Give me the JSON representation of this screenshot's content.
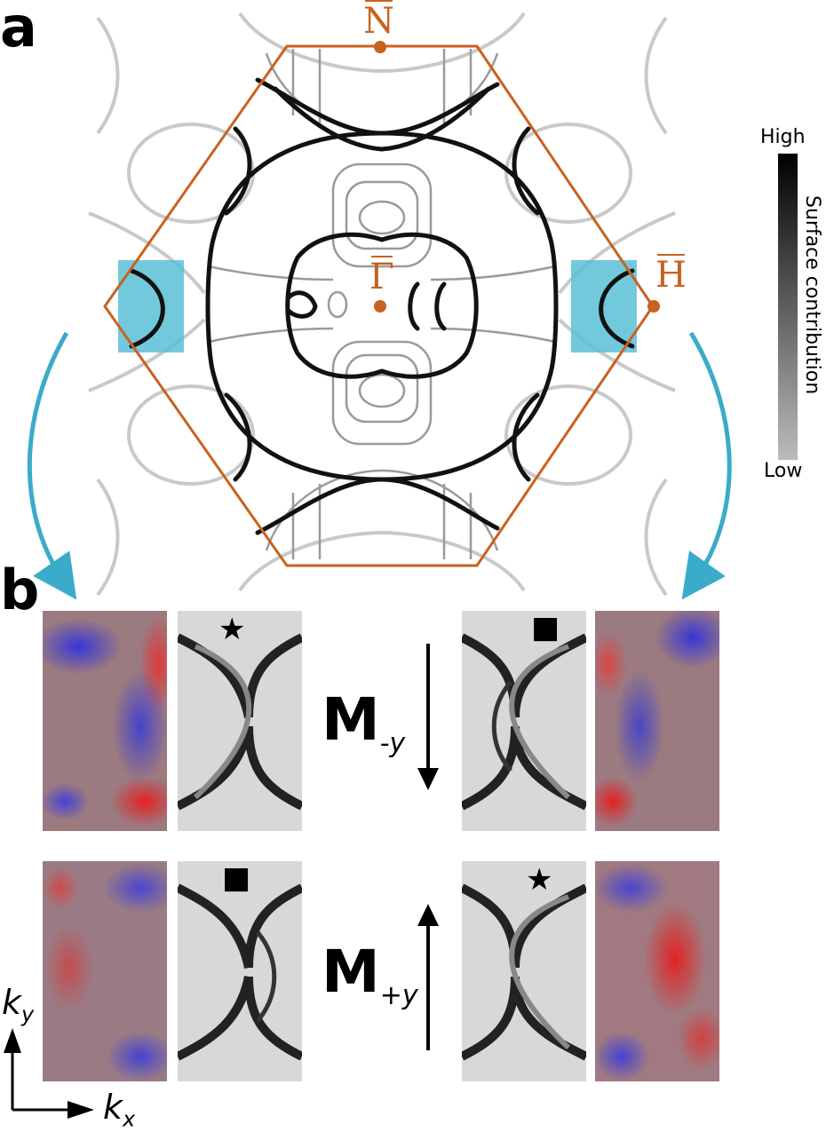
{
  "panel_a": {
    "letter": "a",
    "points": {
      "N": "N",
      "Gamma": "Γ",
      "H": "H"
    },
    "colorbar": {
      "high": "High",
      "low": "Low",
      "title": "Surface contribution"
    },
    "colors": {
      "bz_edge": "#c8621e",
      "highlight": "#5bbfd6",
      "arrow": "#3aabc9"
    }
  },
  "panel_b": {
    "letter": "b",
    "rows": [
      {
        "label_main": "M",
        "label_sub": "-y",
        "arrow_direction": "down",
        "left_marker": "★",
        "right_marker": "■"
      },
      {
        "label_main": "M",
        "label_sub": "+y",
        "arrow_direction": "up",
        "left_marker": "■",
        "right_marker": "★"
      }
    ],
    "axes": {
      "ky_main": "k",
      "ky_sub": "y",
      "kx_main": "k",
      "kx_sub": "x"
    }
  }
}
